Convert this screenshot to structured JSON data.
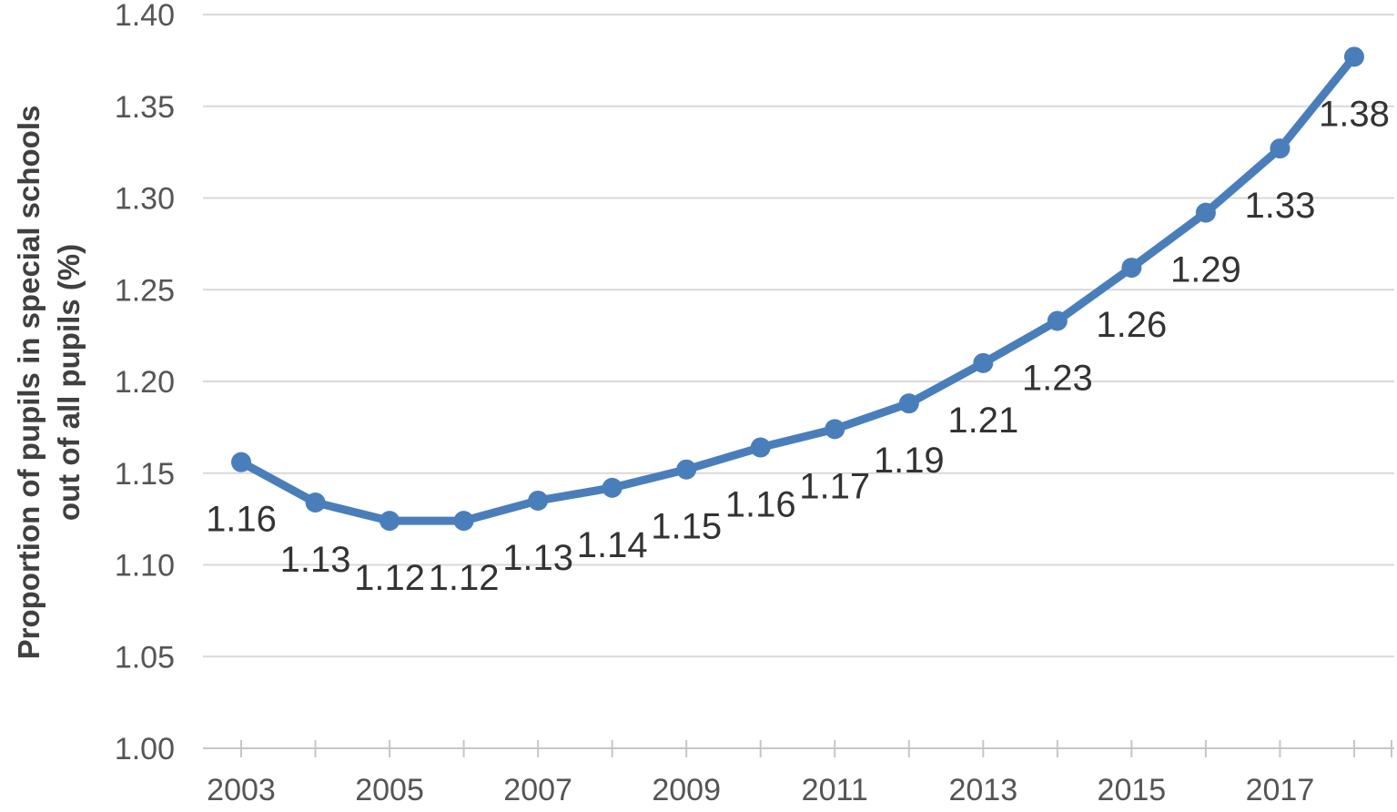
{
  "y_axis_title": {
    "line1": "Proportion of pupils in special schools",
    "line2": "out of all pupils (%)"
  },
  "chart_data": {
    "type": "line",
    "title": "",
    "x": [
      2003,
      2004,
      2005,
      2006,
      2007,
      2008,
      2009,
      2010,
      2011,
      2012,
      2013,
      2014,
      2015,
      2016,
      2017,
      2018
    ],
    "values": [
      1.156,
      1.134,
      1.124,
      1.124,
      1.135,
      1.142,
      1.152,
      1.164,
      1.174,
      1.188,
      1.21,
      1.233,
      1.262,
      1.292,
      1.327,
      1.377
    ],
    "data_labels": [
      "1.16",
      "1.13",
      "1.12",
      "1.12",
      "1.13",
      "1.14",
      "1.15",
      "1.16",
      "1.17",
      "1.19",
      "1.21",
      "1.23",
      "1.26",
      "1.29",
      "1.33",
      "1.38"
    ],
    "x_tick_labels": [
      "2003",
      "2005",
      "2007",
      "2009",
      "2011",
      "2013",
      "2015",
      "2017"
    ],
    "y_ticks": [
      "1.00",
      "1.05",
      "1.10",
      "1.15",
      "1.20",
      "1.25",
      "1.30",
      "1.35",
      "1.40"
    ],
    "ylim": [
      1.0,
      1.4
    ],
    "xlabel": "",
    "ylabel": "Proportion of pupils in special schools out of all pupils (%)",
    "legend": "none",
    "grid": "horizontal",
    "colors": {
      "line": "#4A7EBB",
      "marker": "#4A7EBB",
      "grid": "#D9D9D9",
      "axis": "#C6C6C6",
      "tick_label": "#555555",
      "data_label": "#333333",
      "axis_title": "#404040",
      "background": "#FFFFFF"
    }
  }
}
